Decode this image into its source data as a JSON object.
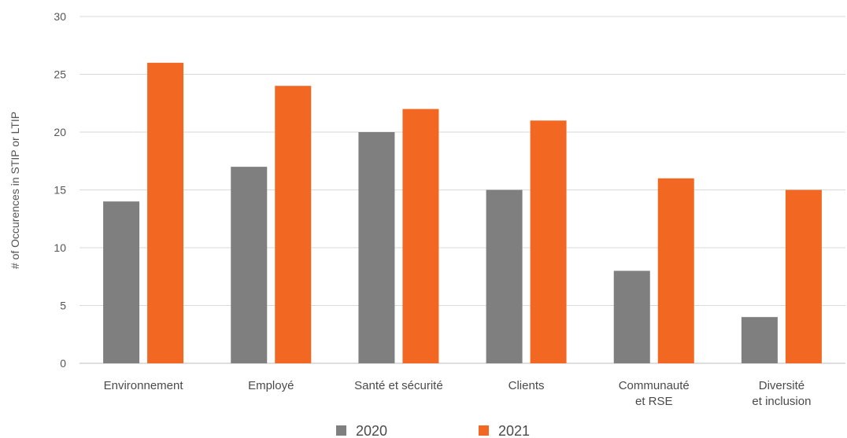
{
  "chart_data": {
    "type": "bar",
    "title": "",
    "xlabel": "",
    "ylabel": "# of Occurences in STIP or LTIP",
    "ylim": [
      0,
      30
    ],
    "yticks": [
      0,
      5,
      10,
      15,
      20,
      25,
      30
    ],
    "categories": [
      [
        "Environnement"
      ],
      [
        "Employé"
      ],
      [
        "Santé et sécurité"
      ],
      [
        "Clients"
      ],
      [
        "Communauté",
        "et RSE"
      ],
      [
        "Diversité",
        "et inclusion"
      ]
    ],
    "series": [
      {
        "name": "2020",
        "color": "#7f7f7f",
        "values": [
          14,
          17,
          20,
          15,
          8,
          4
        ]
      },
      {
        "name": "2021",
        "color": "#f26722",
        "values": [
          26,
          24,
          22,
          21,
          16,
          15
        ]
      }
    ],
    "grid": true,
    "legend": "bottom-center"
  }
}
